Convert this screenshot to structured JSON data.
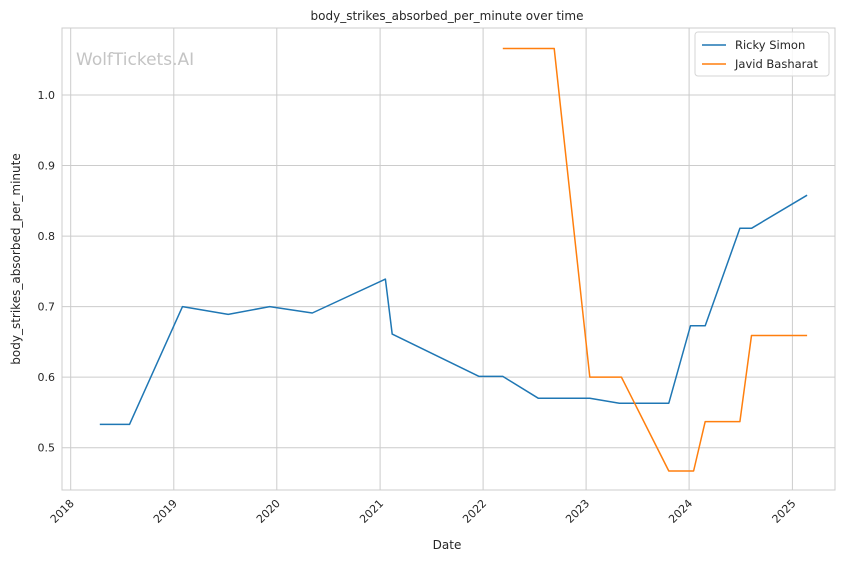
{
  "chart_data": {
    "type": "line",
    "title": "body_strikes_absorbed_per_minute over time",
    "xlabel": "Date",
    "ylabel": "body_strikes_absorbed_per_minute",
    "watermark": "WolfTickets.AI",
    "xlim": [
      "2017-12-01",
      "2025-06-01"
    ],
    "ylim": [
      0.44,
      1.095
    ],
    "x_ticks": [
      "2018",
      "2019",
      "2020",
      "2021",
      "2022",
      "2023",
      "2024",
      "2025"
    ],
    "y_ticks": [
      0.5,
      0.6,
      0.7,
      0.8,
      0.9,
      1.0
    ],
    "grid": true,
    "legend_position": "top-right",
    "series": [
      {
        "name": "Ricky Simon",
        "color": "#1f77b4",
        "points": [
          [
            "2018-04-14",
            0.533
          ],
          [
            "2018-07-28",
            0.533
          ],
          [
            "2019-02-01",
            0.7
          ],
          [
            "2019-07-13",
            0.689
          ],
          [
            "2019-12-07",
            0.7
          ],
          [
            "2020-05-06",
            0.691
          ],
          [
            "2021-01-20",
            0.739
          ],
          [
            "2021-02-13",
            0.661
          ],
          [
            "2021-12-18",
            0.601
          ],
          [
            "2022-03-12",
            0.601
          ],
          [
            "2022-07-16",
            0.57
          ],
          [
            "2023-01-14",
            0.57
          ],
          [
            "2023-04-29",
            0.563
          ],
          [
            "2023-10-21",
            0.563
          ],
          [
            "2024-01-06",
            0.673
          ],
          [
            "2024-02-27",
            0.673
          ],
          [
            "2024-06-29",
            0.811
          ],
          [
            "2024-08-09",
            0.811
          ],
          [
            "2025-02-22",
            0.858
          ]
        ]
      },
      {
        "name": "Javid Basharat",
        "color": "#ff7f0e",
        "points": [
          [
            "2022-03-12",
            1.066
          ],
          [
            "2022-09-10",
            1.066
          ],
          [
            "2023-01-14",
            0.6
          ],
          [
            "2023-05-06",
            0.6
          ],
          [
            "2023-10-21",
            0.467
          ],
          [
            "2024-01-17",
            0.467
          ],
          [
            "2024-02-27",
            0.537
          ],
          [
            "2024-06-29",
            0.537
          ],
          [
            "2024-08-09",
            0.659
          ],
          [
            "2025-02-22",
            0.659
          ]
        ]
      }
    ]
  }
}
